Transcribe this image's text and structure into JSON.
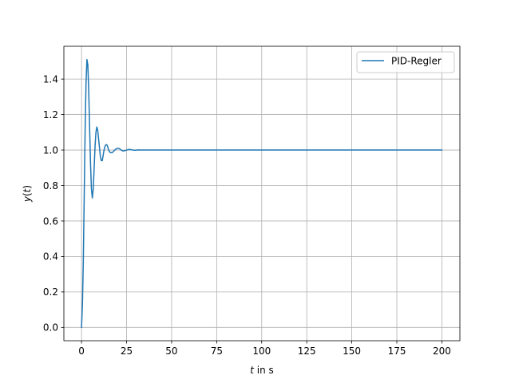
{
  "chart_data": {
    "type": "line",
    "title": "",
    "xlabel_italic": "t",
    "xlabel_rest": " in s",
    "ylabel_italic_y": "y",
    "ylabel_paren_open": "(",
    "ylabel_italic_t": "t",
    "ylabel_paren_close": ")",
    "xlim": [
      -9.8,
      210
    ],
    "ylim": [
      -0.075,
      1.585
    ],
    "xticks": [
      0,
      25,
      50,
      75,
      100,
      125,
      150,
      175,
      200
    ],
    "yticks": [
      0.0,
      0.2,
      0.4,
      0.6,
      0.8,
      1.0,
      1.2,
      1.4
    ],
    "xtick_labels": [
      "0",
      "25",
      "50",
      "75",
      "100",
      "125",
      "150",
      "175",
      "200"
    ],
    "ytick_labels": [
      "0.0",
      "0.2",
      "0.4",
      "0.6",
      "0.8",
      "1.0",
      "1.2",
      "1.4"
    ],
    "grid": true,
    "legend_position": "top-right",
    "series": [
      {
        "name": "PID-Regler",
        "color": "#1f77b4",
        "x": [
          0,
          0.5,
          1,
          1.5,
          2,
          2.5,
          3,
          3.5,
          4,
          4.5,
          5,
          5.5,
          6,
          6.5,
          7,
          7.5,
          8,
          8.5,
          9,
          9.5,
          10,
          10.5,
          11,
          11.5,
          12,
          12.5,
          13,
          13.5,
          14,
          14.5,
          15,
          16,
          17,
          18,
          19,
          20,
          21,
          22,
          23,
          24,
          25,
          26,
          27,
          28,
          29,
          30,
          31,
          32,
          33,
          34,
          35,
          36,
          38,
          40,
          42,
          45,
          50,
          60,
          80,
          100,
          120,
          140,
          160,
          180,
          200
        ],
        "y": [
          0.0,
          0.13,
          0.38,
          0.75,
          1.12,
          1.38,
          1.51,
          1.48,
          1.33,
          1.12,
          0.92,
          0.78,
          0.73,
          0.78,
          0.9,
          1.02,
          1.1,
          1.13,
          1.11,
          1.06,
          1.01,
          0.96,
          0.94,
          0.94,
          0.97,
          1.0,
          1.02,
          1.03,
          1.03,
          1.02,
          1.0,
          0.985,
          0.985,
          0.995,
          1.005,
          1.01,
          1.008,
          1.0,
          0.995,
          0.996,
          1.0,
          1.003,
          1.003,
          1.001,
          0.999,
          0.999,
          1.0,
          1.001,
          1.0,
          1.0,
          1.0,
          1.0,
          1.0,
          1.0,
          1.0,
          1.0,
          1.0,
          1.0,
          1.0,
          1.0,
          1.0,
          1.0,
          1.0,
          1.0,
          1.0
        ]
      }
    ]
  }
}
